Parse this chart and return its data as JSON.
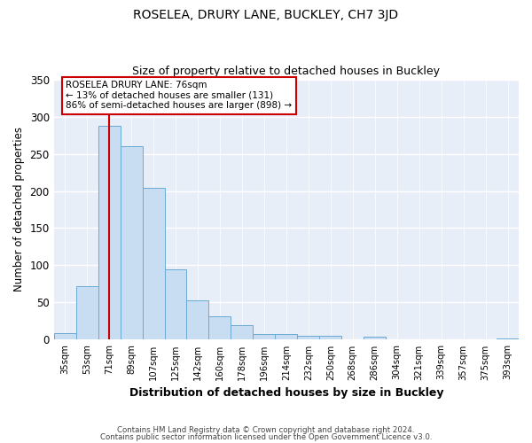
{
  "title": "ROSELEA, DRURY LANE, BUCKLEY, CH7 3JD",
  "subtitle": "Size of property relative to detached houses in Buckley",
  "xlabel": "Distribution of detached houses by size in Buckley",
  "ylabel": "Number of detached properties",
  "bar_labels": [
    "35sqm",
    "53sqm",
    "71sqm",
    "89sqm",
    "107sqm",
    "125sqm",
    "142sqm",
    "160sqm",
    "178sqm",
    "196sqm",
    "214sqm",
    "232sqm",
    "250sqm",
    "268sqm",
    "286sqm",
    "304sqm",
    "321sqm",
    "339sqm",
    "357sqm",
    "375sqm",
    "393sqm"
  ],
  "bar_values": [
    9,
    72,
    287,
    260,
    204,
    95,
    53,
    31,
    20,
    8,
    8,
    5,
    5,
    0,
    4,
    0,
    0,
    0,
    0,
    0,
    2
  ],
  "bar_color": "#c9ddf2",
  "bar_edge_color": "#6aaad4",
  "vline_x": 2,
  "vline_color": "#cc0000",
  "ylim": [
    0,
    350
  ],
  "yticks": [
    0,
    50,
    100,
    150,
    200,
    250,
    300,
    350
  ],
  "annotation_title": "ROSELEA DRURY LANE: 76sqm",
  "annotation_line1": "← 13% of detached houses are smaller (131)",
  "annotation_line2": "86% of semi-detached houses are larger (898) →",
  "annotation_box_color": "#cc0000",
  "footnote1": "Contains HM Land Registry data © Crown copyright and database right 2024.",
  "footnote2": "Contains public sector information licensed under the Open Government Licence v3.0.",
  "bg_color": "#ffffff",
  "plot_bg_color": "#e8eef8",
  "grid_color": "#ffffff"
}
